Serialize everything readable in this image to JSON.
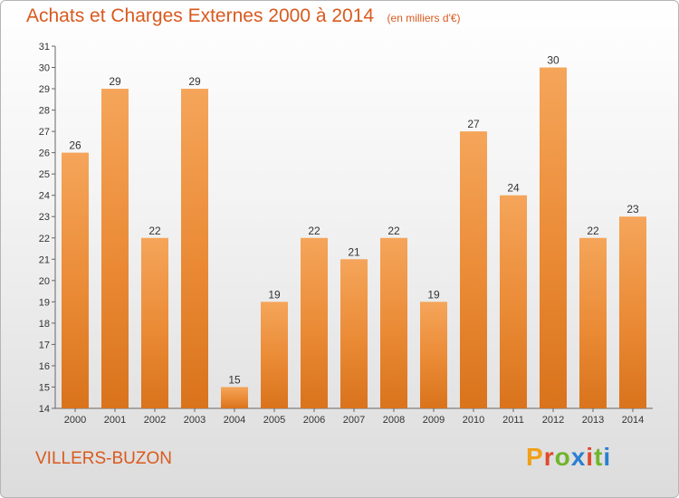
{
  "chart_data": {
    "type": "bar",
    "title": "Achats et Charges Externes 2000 à 2014",
    "subtitle": "(en milliers d'€)",
    "categories": [
      "2000",
      "2001",
      "2002",
      "2003",
      "2004",
      "2005",
      "2006",
      "2007",
      "2008",
      "2009",
      "2010",
      "2011",
      "2012",
      "2013",
      "2014"
    ],
    "values": [
      26,
      29,
      22,
      29,
      15,
      19,
      22,
      21,
      22,
      19,
      27,
      24,
      30,
      22,
      23
    ],
    "ylim": [
      14,
      31
    ],
    "yticks": [
      14,
      15,
      16,
      17,
      18,
      19,
      20,
      21,
      22,
      23,
      24,
      25,
      26,
      27,
      28,
      29,
      30,
      31
    ],
    "xlabel": "",
    "ylabel": "",
    "grid": false,
    "bar_color": "#e8822c"
  },
  "footer": {
    "city": "VILLERS-BUZON",
    "logo_text": "Proxiti",
    "logo_colors": [
      "#f0a019",
      "#e04a2c",
      "#6fb52c",
      "#2a7fd0",
      "#e04a2c",
      "#6fb52c",
      "#2a7fd0"
    ]
  }
}
